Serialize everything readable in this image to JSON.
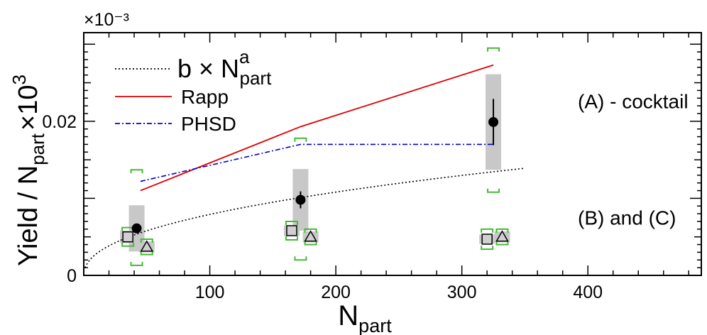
{
  "chart_data": {
    "type": "scatter",
    "title": "",
    "xlabel": {
      "main": "N",
      "sub": "part"
    },
    "ylabel": {
      "main": "Yield / N",
      "sub": "part",
      "suffix": "×10",
      "sup": "3"
    },
    "y_exponent_label": "×10⁻³",
    "xlim": [
      0,
      490
    ],
    "ylim": [
      0,
      0.0315
    ],
    "x_ticks": [
      100,
      200,
      300,
      400
    ],
    "y_ticks": [
      0,
      0.02
    ],
    "x_tick_labels": [
      "100",
      "200",
      "300",
      "400"
    ],
    "y_tick_labels": [
      "0",
      "0.02"
    ],
    "grid": false,
    "legend_position": "top-left",
    "legend": [
      {
        "id": "fit",
        "label_main": "b × N",
        "label_sup": "a",
        "label_sub": "part",
        "color": "#000000",
        "dash": "dotted"
      },
      {
        "id": "rapp",
        "label": "Rapp",
        "color": "#dd0000",
        "dash": "solid"
      },
      {
        "id": "phsd",
        "label": "PHSD",
        "color": "#0000cc",
        "dash": "dashdot"
      }
    ],
    "annotations": [
      {
        "text": "(A) - cocktail",
        "x": 392,
        "y": 0.0217
      },
      {
        "text": "(B) and (C)",
        "x": 392,
        "y": 0.0066
      }
    ],
    "series": [
      {
        "id": "A",
        "marker": "filled-circle",
        "color": "#000000",
        "x": [
          42,
          172,
          325
        ],
        "y": [
          0.0061,
          0.0098,
          0.0199
        ],
        "stat_err": [
          0.0006,
          0.0011,
          0.003
        ],
        "sys_err": [
          0.003,
          0.004,
          0.0062
        ],
        "model_band": [
          [
            0.0013,
            0.0137
          ],
          [
            0.002,
            0.0178
          ],
          [
            0.0108,
            0.0295
          ]
        ]
      },
      {
        "id": "B",
        "marker": "open-square",
        "color": "#000000",
        "x": [
          35,
          165,
          320
        ],
        "y": [
          0.005,
          0.0058,
          0.0047
        ],
        "stat_err": [
          0.0002,
          0.0002,
          0.0006
        ],
        "sys_err": [
          0.0008,
          0.0007,
          0.0006
        ],
        "model_band": [
          [
            0.0038,
            0.0062
          ],
          [
            0.0046,
            0.007
          ],
          [
            0.0034,
            0.006
          ]
        ]
      },
      {
        "id": "C",
        "marker": "open-triangle",
        "color": "#000000",
        "x": [
          50,
          180,
          332
        ],
        "y": [
          0.0037,
          0.005,
          0.005
        ],
        "stat_err": [
          0.0002,
          0.0002,
          0.0002
        ],
        "sys_err": [
          0.0007,
          0.0007,
          0.0007
        ],
        "model_band": [
          [
            0.0027,
            0.0047
          ],
          [
            0.004,
            0.006
          ],
          [
            0.004,
            0.006
          ]
        ]
      }
    ],
    "curves": [
      {
        "id": "rapp",
        "x": [
          45,
          172,
          325
        ],
        "y": [
          0.011,
          0.0193,
          0.0273
        ]
      },
      {
        "id": "phsd",
        "x": [
          45,
          172,
          325
        ],
        "y": [
          0.0122,
          0.017,
          0.017
        ]
      },
      {
        "id": "fit",
        "a": 0.45,
        "b": 0.000996,
        "x_from": 1,
        "x_to": 350
      }
    ]
  }
}
